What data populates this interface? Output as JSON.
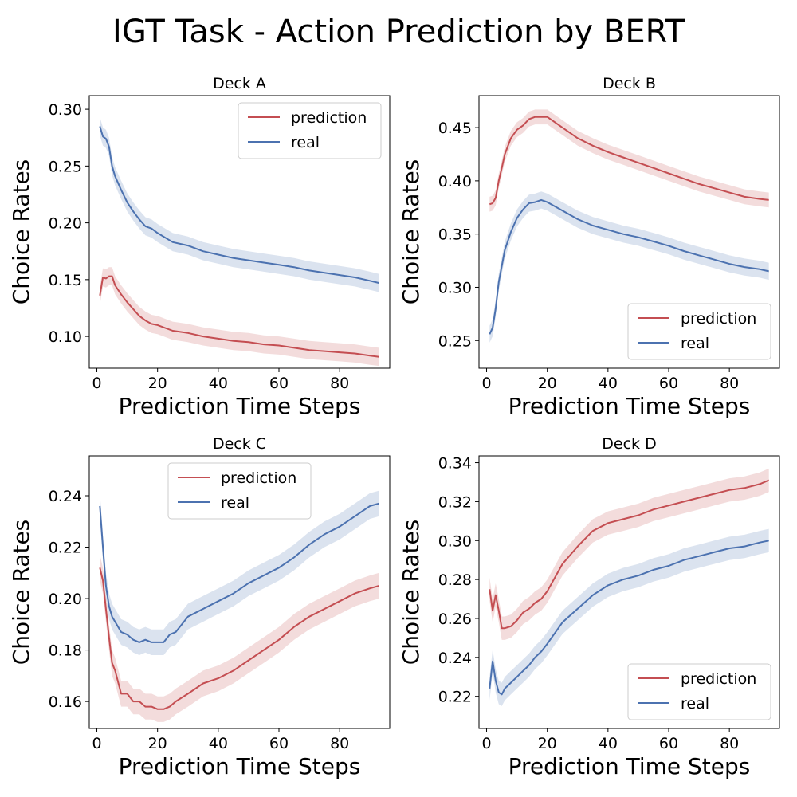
{
  "figure": {
    "title": "IGT Task - Action Prediction by BERT"
  },
  "colors": {
    "prediction": "#c44e52",
    "real": "#4c72b0",
    "prediction_band": "#c44e52",
    "real_band": "#4c72b0"
  },
  "chart_data": [
    {
      "type": "line",
      "title": "Deck A",
      "xlabel": "Prediction Time Steps",
      "ylabel": "Choice Rates",
      "xlim": [
        -2.5,
        96.5
      ],
      "ylim": [
        0.072,
        0.312
      ],
      "xticks": [
        0,
        20,
        40,
        60,
        80
      ],
      "yticks": [
        0.1,
        0.15,
        0.2,
        0.25,
        0.3
      ],
      "ytick_labels": [
        "0.10",
        "0.15",
        "0.20",
        "0.25",
        "0.30"
      ],
      "legend_loc": "upper right",
      "legend_entries": [
        "prediction",
        "real"
      ],
      "series": [
        {
          "name": "prediction",
          "band": 0.008,
          "x": [
            1,
            2,
            3,
            4,
            5,
            6,
            8,
            10,
            12,
            14,
            16,
            18,
            20,
            25,
            30,
            35,
            40,
            45,
            50,
            55,
            60,
            65,
            70,
            75,
            80,
            85,
            90,
            93
          ],
          "y": [
            0.136,
            0.152,
            0.151,
            0.153,
            0.153,
            0.145,
            0.137,
            0.13,
            0.124,
            0.118,
            0.114,
            0.111,
            0.11,
            0.105,
            0.103,
            0.1,
            0.098,
            0.096,
            0.095,
            0.093,
            0.092,
            0.09,
            0.088,
            0.087,
            0.086,
            0.085,
            0.083,
            0.082
          ]
        },
        {
          "name": "real",
          "band": 0.008,
          "x": [
            1,
            2,
            3,
            4,
            5,
            6,
            8,
            10,
            12,
            14,
            16,
            18,
            20,
            25,
            30,
            35,
            40,
            45,
            50,
            55,
            60,
            65,
            70,
            75,
            80,
            85,
            90,
            93
          ],
          "y": [
            0.285,
            0.276,
            0.274,
            0.267,
            0.25,
            0.241,
            0.229,
            0.218,
            0.21,
            0.203,
            0.197,
            0.195,
            0.191,
            0.183,
            0.18,
            0.175,
            0.172,
            0.169,
            0.167,
            0.165,
            0.163,
            0.161,
            0.158,
            0.156,
            0.154,
            0.152,
            0.149,
            0.147
          ]
        }
      ]
    },
    {
      "type": "line",
      "title": "Deck B",
      "xlabel": "Prediction Time Steps",
      "ylabel": "Choice Rates",
      "xlim": [
        -2.5,
        96.5
      ],
      "ylim": [
        0.224,
        0.48
      ],
      "xticks": [
        0,
        20,
        40,
        60,
        80
      ],
      "yticks": [
        0.25,
        0.3,
        0.35,
        0.4,
        0.45
      ],
      "ytick_labels": [
        "0.25",
        "0.30",
        "0.35",
        "0.40",
        "0.45"
      ],
      "legend_loc": "lower right",
      "legend_entries": [
        "prediction",
        "real"
      ],
      "series": [
        {
          "name": "prediction",
          "band": 0.007,
          "x": [
            1,
            2,
            3,
            4,
            5,
            6,
            8,
            10,
            12,
            14,
            16,
            18,
            20,
            25,
            30,
            35,
            40,
            45,
            50,
            55,
            60,
            65,
            70,
            75,
            80,
            85,
            90,
            93
          ],
          "y": [
            0.378,
            0.379,
            0.384,
            0.4,
            0.412,
            0.425,
            0.44,
            0.448,
            0.452,
            0.458,
            0.46,
            0.46,
            0.46,
            0.45,
            0.44,
            0.433,
            0.427,
            0.422,
            0.417,
            0.412,
            0.407,
            0.402,
            0.397,
            0.393,
            0.389,
            0.385,
            0.383,
            0.382
          ]
        },
        {
          "name": "real",
          "band": 0.008,
          "x": [
            1,
            2,
            3,
            4,
            5,
            6,
            8,
            10,
            12,
            14,
            16,
            18,
            20,
            25,
            30,
            35,
            40,
            45,
            50,
            55,
            60,
            65,
            70,
            75,
            80,
            85,
            90,
            93
          ],
          "y": [
            0.256,
            0.262,
            0.28,
            0.305,
            0.32,
            0.335,
            0.352,
            0.365,
            0.373,
            0.379,
            0.38,
            0.382,
            0.38,
            0.372,
            0.364,
            0.358,
            0.354,
            0.35,
            0.347,
            0.343,
            0.339,
            0.334,
            0.33,
            0.326,
            0.322,
            0.319,
            0.317,
            0.315
          ]
        }
      ]
    },
    {
      "type": "line",
      "title": "Deck C",
      "xlabel": "Prediction Time Steps",
      "ylabel": "Choice Rates",
      "xlim": [
        -2.5,
        96.5
      ],
      "ylim": [
        0.1495,
        0.2555
      ],
      "xticks": [
        0,
        20,
        40,
        60,
        80
      ],
      "yticks": [
        0.16,
        0.18,
        0.2,
        0.22,
        0.24
      ],
      "ytick_labels": [
        "0.16",
        "0.18",
        "0.20",
        "0.22",
        "0.24"
      ],
      "legend_loc": "upper center",
      "legend_entries": [
        "prediction",
        "real"
      ],
      "series": [
        {
          "name": "prediction",
          "band": 0.005,
          "x": [
            1,
            2,
            3,
            4,
            5,
            6,
            8,
            10,
            12,
            14,
            16,
            18,
            20,
            22,
            24,
            26,
            30,
            35,
            40,
            45,
            50,
            55,
            60,
            65,
            70,
            75,
            80,
            85,
            90,
            93
          ],
          "y": [
            0.212,
            0.207,
            0.196,
            0.185,
            0.175,
            0.172,
            0.163,
            0.163,
            0.16,
            0.16,
            0.158,
            0.158,
            0.157,
            0.157,
            0.158,
            0.16,
            0.163,
            0.167,
            0.169,
            0.172,
            0.176,
            0.18,
            0.184,
            0.189,
            0.193,
            0.196,
            0.199,
            0.202,
            0.204,
            0.205
          ]
        },
        {
          "name": "real",
          "band": 0.005,
          "x": [
            1,
            2,
            3,
            4,
            5,
            6,
            8,
            10,
            12,
            14,
            16,
            18,
            20,
            22,
            24,
            26,
            30,
            35,
            40,
            45,
            50,
            55,
            60,
            65,
            70,
            75,
            80,
            85,
            90,
            93
          ],
          "y": [
            0.236,
            0.22,
            0.205,
            0.197,
            0.193,
            0.191,
            0.187,
            0.186,
            0.184,
            0.183,
            0.184,
            0.183,
            0.183,
            0.183,
            0.186,
            0.187,
            0.193,
            0.196,
            0.199,
            0.202,
            0.206,
            0.209,
            0.212,
            0.216,
            0.221,
            0.225,
            0.228,
            0.232,
            0.236,
            0.237
          ]
        }
      ]
    },
    {
      "type": "line",
      "title": "Deck D",
      "xlabel": "Prediction Time Steps",
      "ylabel": "Choice Rates",
      "xlim": [
        -2.5,
        96.5
      ],
      "ylim": [
        0.2035,
        0.3435
      ],
      "xticks": [
        0,
        20,
        40,
        60,
        80
      ],
      "yticks": [
        0.22,
        0.24,
        0.26,
        0.28,
        0.3,
        0.32,
        0.34
      ],
      "ytick_labels": [
        "0.22",
        "0.24",
        "0.26",
        "0.28",
        "0.30",
        "0.32",
        "0.34"
      ],
      "legend_loc": "lower right",
      "legend_entries": [
        "prediction",
        "real"
      ],
      "series": [
        {
          "name": "prediction",
          "band": 0.006,
          "x": [
            1,
            2,
            3,
            4,
            5,
            6,
            8,
            10,
            12,
            14,
            16,
            18,
            20,
            25,
            30,
            35,
            40,
            45,
            50,
            55,
            60,
            65,
            70,
            75,
            80,
            85,
            90,
            93
          ],
          "y": [
            0.275,
            0.264,
            0.272,
            0.264,
            0.255,
            0.255,
            0.256,
            0.259,
            0.263,
            0.265,
            0.268,
            0.27,
            0.274,
            0.288,
            0.297,
            0.305,
            0.309,
            0.311,
            0.313,
            0.316,
            0.318,
            0.32,
            0.322,
            0.324,
            0.326,
            0.327,
            0.329,
            0.331
          ]
        },
        {
          "name": "real",
          "band": 0.006,
          "x": [
            1,
            2,
            3,
            4,
            5,
            6,
            8,
            10,
            12,
            14,
            16,
            18,
            20,
            25,
            30,
            35,
            40,
            45,
            50,
            55,
            60,
            65,
            70,
            75,
            80,
            85,
            90,
            93
          ],
          "y": [
            0.224,
            0.238,
            0.228,
            0.222,
            0.221,
            0.224,
            0.227,
            0.23,
            0.233,
            0.236,
            0.24,
            0.243,
            0.247,
            0.258,
            0.265,
            0.272,
            0.277,
            0.28,
            0.282,
            0.285,
            0.287,
            0.29,
            0.292,
            0.294,
            0.296,
            0.297,
            0.299,
            0.3
          ]
        }
      ]
    }
  ]
}
